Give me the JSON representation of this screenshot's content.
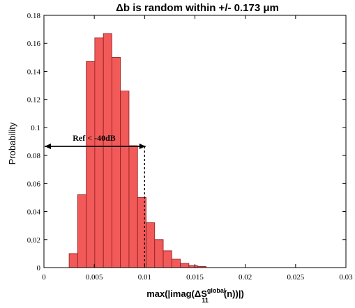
{
  "chart_data": {
    "type": "bar",
    "title": "Δb is random within +/- 0.173 μm",
    "ylabel": "Probability",
    "xlabel": "max(|imag(ΔS11global(n))|)",
    "xlabel_parts": {
      "prefix": "max(|imag(",
      "delta": "Δ",
      "symbol": "S",
      "superscript": "global",
      "subscript": "11",
      "suffix": "(n))|)"
    },
    "xlim": [
      0,
      0.03
    ],
    "ylim": [
      0,
      0.18
    ],
    "x_ticks": [
      0,
      0.005,
      0.01,
      0.015,
      0.02,
      0.025,
      0.03
    ],
    "x_tick_labels": [
      "0",
      "0.005",
      "0.01",
      "0.015",
      "0.02",
      "0.025",
      "0.03"
    ],
    "y_ticks": [
      0,
      0.02,
      0.04,
      0.06,
      0.08,
      0.1,
      0.12,
      0.14,
      0.16,
      0.18
    ],
    "y_tick_labels": [
      "0",
      "0.02",
      "0.04",
      "0.06",
      "0.08",
      "0.1",
      "0.12",
      "0.14",
      "0.16",
      "0.18"
    ],
    "bin_width": 0.00085,
    "bin_start": 0.0025,
    "values": [
      0.01,
      0.052,
      0.147,
      0.164,
      0.167,
      0.15,
      0.126,
      0.087,
      0.05,
      0.032,
      0.02,
      0.012,
      0.006,
      0.003,
      0.0015,
      0.0008
    ],
    "bar_color": "#f25a5a",
    "bar_edge_color": "#8b1a1a",
    "grid": false,
    "annotation": {
      "text": "Ref < -40dB",
      "arrow_y": 0.0865,
      "arrow_x_start": 0,
      "arrow_x_end": 0.0101,
      "dashed_line_x": 0.01
    }
  }
}
